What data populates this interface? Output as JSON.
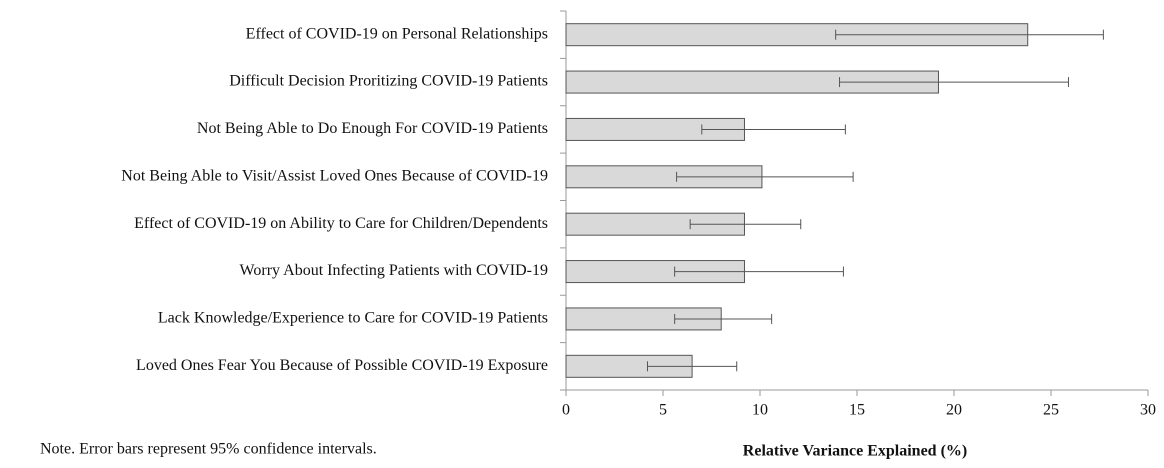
{
  "chart_data": {
    "type": "bar",
    "orientation": "horizontal",
    "categories": [
      "Effect of COVID-19 on Personal Relationships",
      "Difficult Decision Proritizing COVID-19 Patients",
      "Not Being Able to Do Enough For COVID-19 Patients",
      "Not Being Able to Visit/Assist Loved Ones Because of COVID-19",
      "Effect of COVID-19 on Ability to Care for Children/Dependents",
      "Worry About Infecting Patients with COVID-19",
      "Lack Knowledge/Experience to Care for COVID-19 Patients",
      "Loved Ones Fear You Because of Possible COVID-19 Exposure"
    ],
    "values": [
      23.8,
      19.2,
      9.2,
      10.1,
      9.2,
      9.2,
      8.0,
      6.5
    ],
    "ci_low": [
      13.9,
      14.1,
      7.0,
      5.7,
      6.4,
      5.6,
      5.6,
      4.2
    ],
    "ci_high": [
      27.7,
      25.9,
      14.4,
      14.8,
      12.1,
      14.3,
      10.6,
      8.8
    ],
    "color": "#d9d9d9",
    "xlim": [
      0,
      30
    ],
    "xticks": [
      0,
      5,
      10,
      15,
      20,
      25,
      30
    ],
    "xlabel": "Relative Variance Explained (%)",
    "note": "Note. Error bars represent 95% confidence intervals."
  }
}
